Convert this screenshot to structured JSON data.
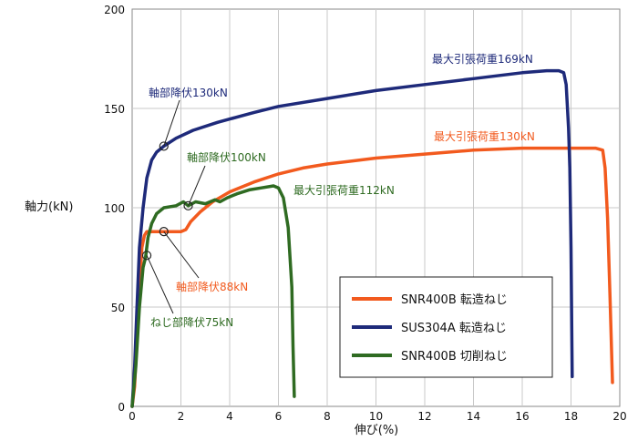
{
  "chart_data": {
    "type": "line",
    "xlabel": "伸び(%)",
    "ylabel": "軸力(kN)",
    "xlim": [
      0,
      20
    ],
    "ylim": [
      0,
      200
    ],
    "xticks": [
      0,
      2,
      4,
      6,
      8,
      10,
      12,
      14,
      16,
      18,
      20
    ],
    "yticks": [
      0,
      50,
      100,
      150,
      200
    ],
    "grid": true,
    "legend_position": "bottom-right",
    "series": [
      {
        "name": "SNR400B 転造ねじ",
        "color": "#f25a1e",
        "points": [
          [
            0,
            0
          ],
          [
            0.1,
            10
          ],
          [
            0.2,
            35
          ],
          [
            0.3,
            60
          ],
          [
            0.4,
            80
          ],
          [
            0.5,
            86
          ],
          [
            0.6,
            88
          ],
          [
            1.0,
            88
          ],
          [
            1.5,
            88
          ],
          [
            2.0,
            88
          ],
          [
            2.2,
            89
          ],
          [
            2.4,
            93
          ],
          [
            2.8,
            98
          ],
          [
            3.3,
            103
          ],
          [
            4.0,
            108
          ],
          [
            5.0,
            113
          ],
          [
            6.0,
            117
          ],
          [
            7.0,
            120
          ],
          [
            8.0,
            122
          ],
          [
            10.0,
            125
          ],
          [
            12.0,
            127
          ],
          [
            14.0,
            129
          ],
          [
            16.0,
            130
          ],
          [
            17.0,
            130
          ],
          [
            18.0,
            130
          ],
          [
            18.5,
            130
          ],
          [
            19.0,
            130
          ],
          [
            19.3,
            129
          ],
          [
            19.4,
            120
          ],
          [
            19.5,
            95
          ],
          [
            19.6,
            55
          ],
          [
            19.7,
            12
          ]
        ]
      },
      {
        "name": "SUS304A 転造ねじ",
        "color": "#1e2a7a",
        "points": [
          [
            0,
            0
          ],
          [
            0.1,
            20
          ],
          [
            0.2,
            50
          ],
          [
            0.3,
            80
          ],
          [
            0.45,
            100
          ],
          [
            0.6,
            115
          ],
          [
            0.8,
            124
          ],
          [
            1.0,
            128
          ],
          [
            1.3,
            131
          ],
          [
            1.8,
            135
          ],
          [
            2.5,
            139
          ],
          [
            3.5,
            143
          ],
          [
            5.0,
            148
          ],
          [
            6.0,
            151
          ],
          [
            8.0,
            155
          ],
          [
            10.0,
            159
          ],
          [
            12.0,
            162
          ],
          [
            14.0,
            165
          ],
          [
            16.0,
            168
          ],
          [
            17.0,
            169
          ],
          [
            17.5,
            169
          ],
          [
            17.7,
            168
          ],
          [
            17.8,
            162
          ],
          [
            17.9,
            140
          ],
          [
            17.95,
            120
          ],
          [
            18.0,
            80
          ],
          [
            18.05,
            15
          ]
        ]
      },
      {
        "name": "SNR400B 切削ねじ",
        "color": "#2f6b22",
        "points": [
          [
            0,
            0
          ],
          [
            0.15,
            20
          ],
          [
            0.3,
            50
          ],
          [
            0.45,
            70
          ],
          [
            0.55,
            75
          ],
          [
            0.65,
            85
          ],
          [
            0.8,
            92
          ],
          [
            1.0,
            97
          ],
          [
            1.3,
            100
          ],
          [
            1.8,
            101
          ],
          [
            2.1,
            103
          ],
          [
            2.3,
            101
          ],
          [
            2.6,
            103
          ],
          [
            3.0,
            102
          ],
          [
            3.4,
            104
          ],
          [
            3.6,
            103
          ],
          [
            3.9,
            105
          ],
          [
            4.3,
            107
          ],
          [
            4.8,
            109
          ],
          [
            5.3,
            110
          ],
          [
            5.8,
            111
          ],
          [
            6.0,
            110
          ],
          [
            6.2,
            105
          ],
          [
            6.4,
            90
          ],
          [
            6.55,
            60
          ],
          [
            6.6,
            30
          ],
          [
            6.65,
            5
          ]
        ]
      }
    ],
    "annotations": [
      {
        "text": "軸部降伏130kN",
        "color": "#1e2a7a",
        "at": [
          1.3,
          131
        ]
      },
      {
        "text": "軸部降伏100kN",
        "color": "#2f6b22",
        "at": [
          2.3,
          101
        ]
      },
      {
        "text": "最大引張荷重112kN",
        "color": "#2f6b22",
        "at": null
      },
      {
        "text": "最大引張荷重169kN",
        "color": "#1e2a7a",
        "at": null
      },
      {
        "text": "最大引張荷重130kN",
        "color": "#f25a1e",
        "at": null
      },
      {
        "text": "軸部降伏88kN",
        "color": "#f25a1e",
        "at": [
          1.3,
          88
        ]
      },
      {
        "text": "ねじ部降伏75kN",
        "color": "#2f6b22",
        "at": [
          0.6,
          76
        ]
      }
    ]
  }
}
